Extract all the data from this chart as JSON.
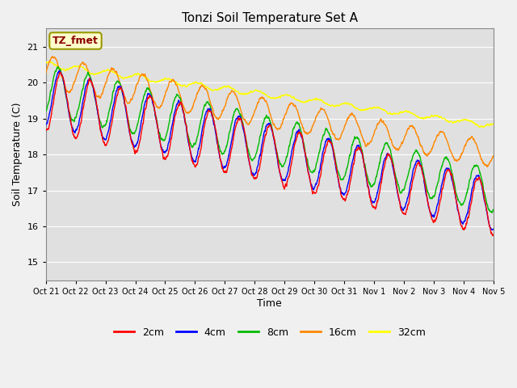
{
  "title": "Tonzi Soil Temperature Set A",
  "xlabel": "Time",
  "ylabel": "Soil Temperature (C)",
  "ylim": [
    14.5,
    21.5
  ],
  "fig_facecolor": "#f0f0f0",
  "axes_facecolor": "#e0e0e0",
  "grid_color": "white",
  "tick_labels": [
    "Oct 21",
    "Oct 22",
    "Oct 23",
    "Oct 24",
    "Oct 25",
    "Oct 26",
    "Oct 27",
    "Oct 28",
    "Oct 29",
    "Oct 30",
    "Oct 31",
    "Nov 1",
    "Nov 2",
    "Nov 3",
    "Nov 4",
    "Nov 5"
  ],
  "series_order_plot": [
    "32cm",
    "16cm",
    "8cm",
    "4cm",
    "2cm"
  ],
  "series": {
    "2cm": {
      "color": "#ff0000"
    },
    "4cm": {
      "color": "#0000ff"
    },
    "8cm": {
      "color": "#00bb00"
    },
    "16cm": {
      "color": "#ff8800"
    },
    "32cm": {
      "color": "#ffff00"
    }
  },
  "legend_label": "TZ_fmet",
  "legend_label_color": "#8B0000",
  "legend_bbox_facecolor": "#ffffcc",
  "legend_bbox_edgecolor": "#999900",
  "total_hours": 360,
  "n_points": 2160,
  "seed": 42
}
